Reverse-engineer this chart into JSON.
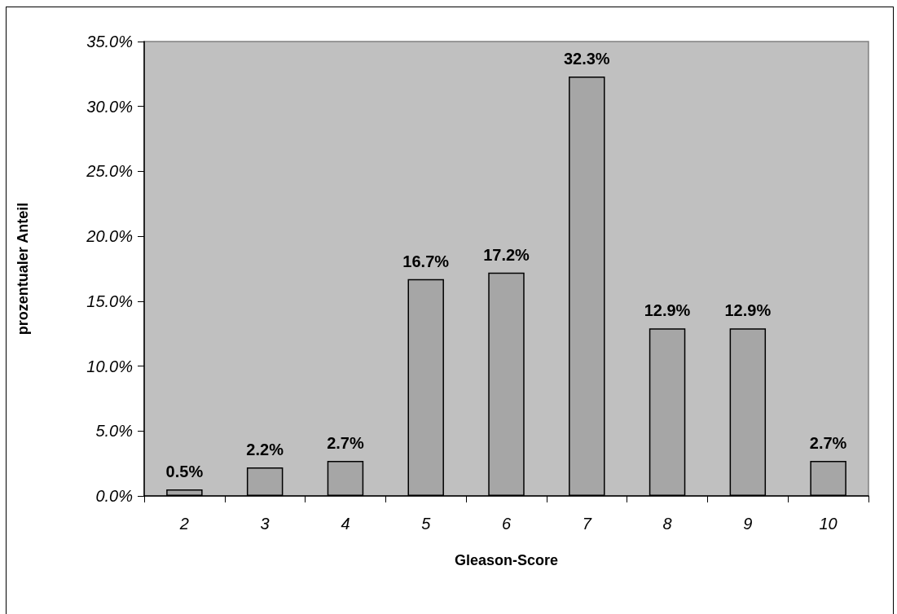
{
  "chart_data": {
    "type": "bar",
    "xlabel": "Gleason-Score",
    "ylabel": "prozentualer Anteil",
    "categories": [
      "2",
      "3",
      "4",
      "5",
      "6",
      "7",
      "8",
      "9",
      "10"
    ],
    "values": [
      0.5,
      2.2,
      2.7,
      16.7,
      17.2,
      32.3,
      12.9,
      12.9,
      2.7
    ],
    "value_labels": [
      "0.5%",
      "2.2%",
      "2.7%",
      "16.7%",
      "17.2%",
      "32.3%",
      "12.9%",
      "12.9%",
      "2.7%"
    ],
    "color": "#a6a6a6",
    "ylim": [
      0,
      35
    ],
    "yticks": [
      {
        "value": 0,
        "label": "0.0%"
      },
      {
        "value": 5,
        "label": "5.0%"
      },
      {
        "value": 10,
        "label": "10.0%"
      },
      {
        "value": 15,
        "label": "15.0%"
      },
      {
        "value": 20,
        "label": "20.0%"
      },
      {
        "value": 25,
        "label": "25.0%"
      },
      {
        "value": 30,
        "label": "30.0%"
      },
      {
        "value": 35,
        "label": "35.0%"
      }
    ]
  }
}
